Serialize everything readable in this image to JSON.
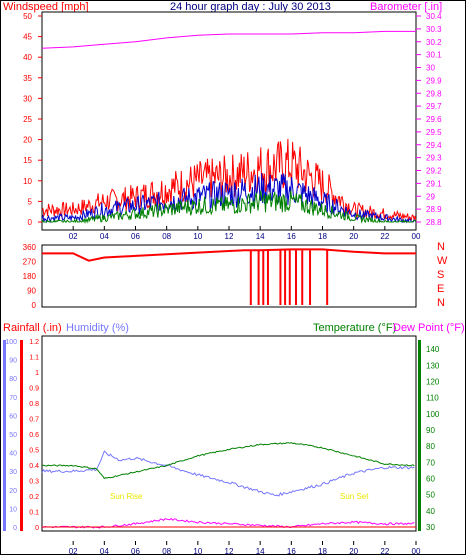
{
  "header": {
    "left_label": "Windspeed [mph]",
    "title": "24 hour graph day : July 30 2013",
    "right_label": "Barometer [.in]"
  },
  "x_axis": {
    "ticks": [
      "02",
      "04",
      "06",
      "08",
      "10",
      "12",
      "14",
      "16",
      "18",
      "20",
      "22",
      "00"
    ]
  },
  "compass": [
    "N",
    "W",
    "S",
    "E",
    "N"
  ],
  "lower_labels": {
    "rainfall": "Rainfall (.in)",
    "humidity": "Humidity (%)",
    "temperature": "Temperature (°F)",
    "dewpoint": "Dew Point (°F)",
    "sunrise": "Sun Rise",
    "sunset": "Sun Set"
  },
  "colors": {
    "wind": "#ff0000",
    "gust": "#ff0000",
    "avg_wind": "#0000cc",
    "wind_green": "#008000",
    "barometer": "#ff00ff",
    "humidity": "#7777ff",
    "temperature": "#008000",
    "dewpoint": "#ff00ff",
    "sun": "#e8e800"
  },
  "chart_data": [
    {
      "type": "line",
      "title": "24 hour graph day : July 30 2013",
      "ylabel": "Windspeed [mph]",
      "ylim": [
        0,
        50
      ],
      "y_ticks": [
        0,
        5,
        10,
        15,
        20,
        25,
        30,
        35,
        40,
        45,
        50
      ],
      "x": [
        0,
        2,
        4,
        6,
        8,
        10,
        12,
        14,
        16,
        18,
        20,
        22,
        24
      ],
      "series": [
        {
          "name": "Windspeed [mph]",
          "values": [
            3,
            3,
            5,
            6,
            8,
            10,
            11,
            13,
            14,
            9,
            3,
            2,
            1
          ]
        },
        {
          "name": "",
          "values": [
            1,
            1,
            3,
            4,
            5,
            6,
            7,
            8,
            8,
            5,
            2,
            1,
            0
          ]
        },
        {
          "name": "",
          "values": [
            0,
            0,
            1,
            2,
            3,
            4,
            4,
            5,
            5,
            3,
            1,
            0,
            0
          ]
        }
      ]
    },
    {
      "type": "line",
      "ylabel": "Barometer [.in]",
      "ylim": [
        28.8,
        30.4
      ],
      "y_ticks": [
        "28.8",
        "28.9",
        "29",
        "29.1",
        "29.2",
        "29.3",
        "29.4",
        "29.5",
        "29.6",
        "29.7",
        "29.8",
        "29.9",
        "30",
        "30.1",
        "30.2",
        "30.3",
        "30.4"
      ],
      "x": [
        0,
        2,
        4,
        6,
        8,
        10,
        12,
        14,
        16,
        18,
        20,
        22,
        24
      ],
      "series": [
        {
          "name": "Barometer [.in]",
          "values": [
            30.15,
            30.16,
            30.18,
            30.2,
            30.23,
            30.25,
            30.26,
            30.26,
            30.26,
            30.27,
            30.27,
            30.28,
            30.28
          ]
        }
      ]
    },
    {
      "type": "line",
      "ylim": [
        0,
        360
      ],
      "y_ticks": [
        0,
        90,
        180,
        270,
        360
      ],
      "x": [
        0,
        2,
        3,
        4,
        6,
        8,
        10,
        12,
        13,
        14,
        16,
        18,
        20,
        22,
        24
      ],
      "series": [
        {
          "name": "",
          "values": [
            320,
            320,
            275,
            295,
            305,
            315,
            325,
            335,
            340,
            340,
            345,
            345,
            330,
            320,
            320
          ]
        }
      ]
    },
    {
      "type": "line",
      "ylabel": "Rainfall (.in)",
      "ylim": [
        0,
        1.2
      ],
      "y_ticks": [
        "0",
        "0.1",
        "0.2",
        "0.3",
        "0.4",
        "0.5",
        "0.6",
        "0.7",
        "0.8",
        "0.9",
        "1",
        "1.1",
        "1.2"
      ],
      "x": [
        0,
        24
      ],
      "series": [
        {
          "name": "Rainfall (.in)",
          "values": [
            0,
            0
          ]
        }
      ]
    },
    {
      "type": "line",
      "ylabel": "Humidity (%)",
      "ylim": [
        0,
        100
      ],
      "y_ticks": [
        0,
        10,
        20,
        30,
        40,
        50,
        60,
        70,
        80,
        90,
        100
      ],
      "x": [
        0,
        2,
        3.5,
        4,
        5,
        6,
        8,
        10,
        12,
        14,
        15,
        16,
        18,
        20,
        22,
        24
      ],
      "series": [
        {
          "name": "Humidity (%)",
          "values": [
            30,
            30,
            31,
            40,
            36,
            37,
            33,
            28,
            24,
            19,
            17,
            19,
            23,
            29,
            32,
            32
          ]
        }
      ]
    },
    {
      "type": "line",
      "ylabel": "Temperature (°F)",
      "ylim": [
        30,
        145
      ],
      "y_ticks": [
        30,
        40,
        50,
        60,
        70,
        80,
        90,
        100,
        110,
        120,
        130,
        140
      ],
      "x": [
        0,
        2,
        3.5,
        4,
        5,
        6,
        8,
        10,
        12,
        14,
        16,
        18,
        20,
        22,
        24
      ],
      "series": [
        {
          "name": "Temperature (°F)",
          "values": [
            68,
            68,
            66,
            60,
            62,
            64,
            68,
            74,
            78,
            81,
            82,
            79,
            74,
            69,
            68
          ]
        },
        {
          "name": "Dew Point (°F)",
          "values": [
            30,
            30,
            30,
            30,
            31,
            32,
            35,
            33,
            32,
            31,
            30,
            32,
            33,
            32,
            32
          ]
        }
      ]
    }
  ]
}
